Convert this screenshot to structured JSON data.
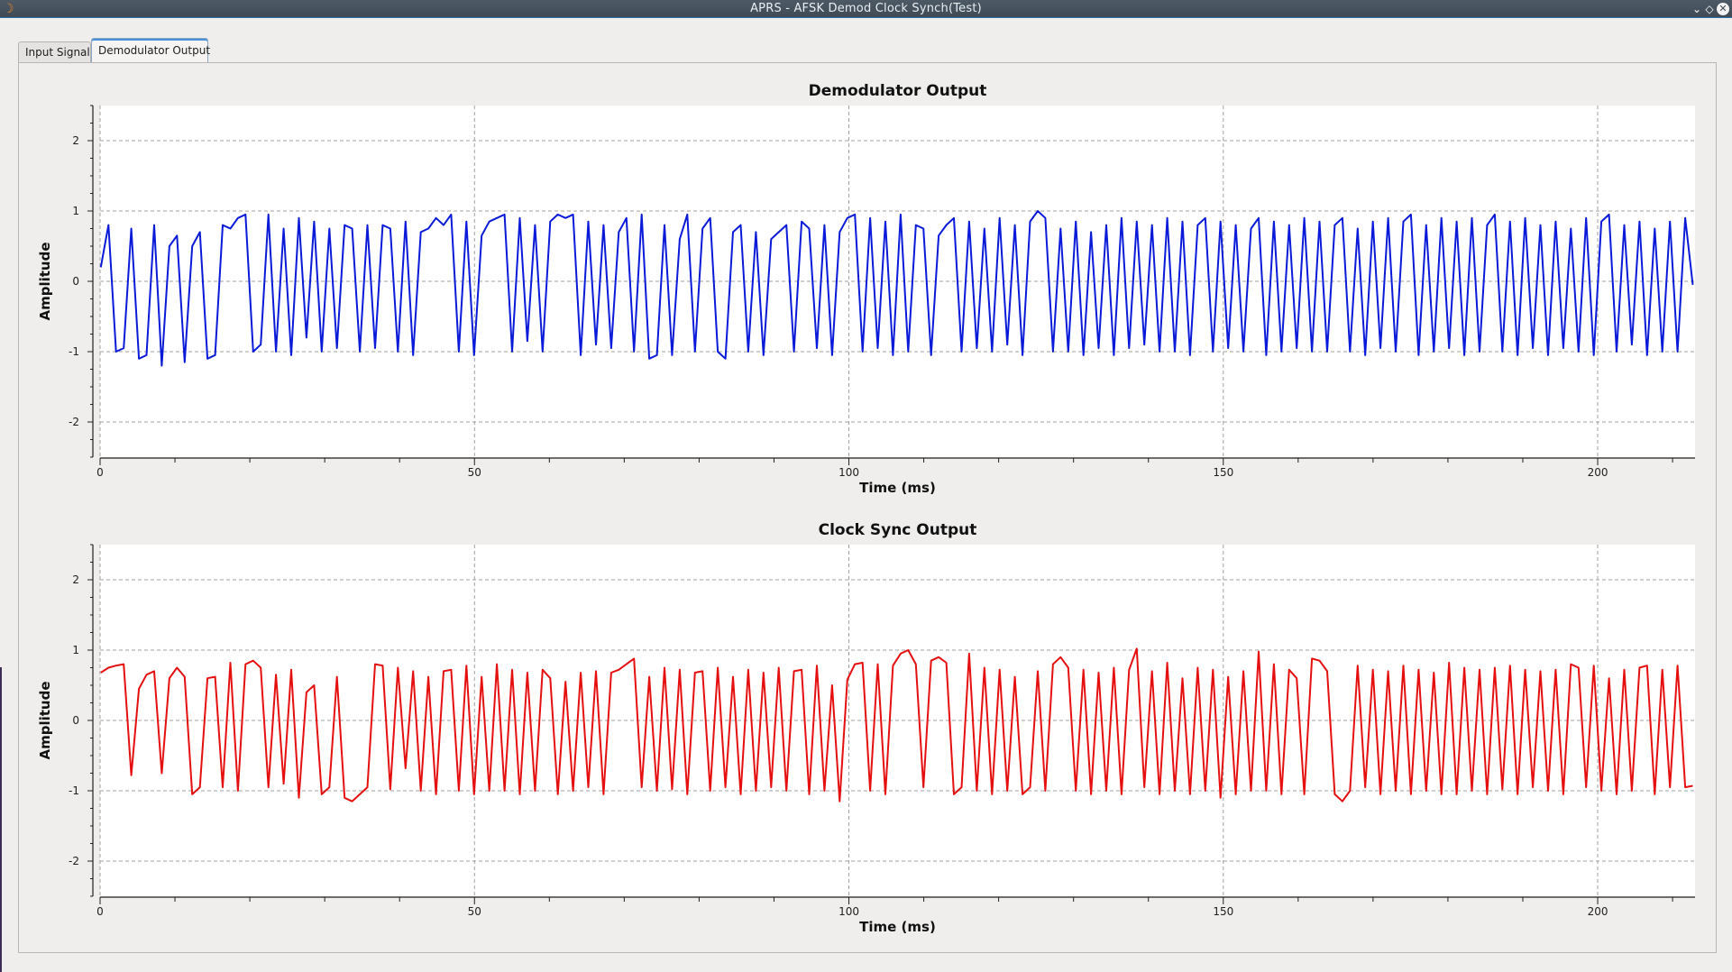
{
  "window": {
    "title": "APRS - AFSK Demod Clock Synch(Test)",
    "app_icon": "gnuradio-icon",
    "buttons": [
      "minimize-icon",
      "maximize-icon",
      "close-icon"
    ]
  },
  "tabs": [
    {
      "label": "Input Signal",
      "active": false
    },
    {
      "label": "Demodulator Output",
      "active": true
    }
  ],
  "chart_data": [
    {
      "type": "line",
      "title": "Demodulator Output",
      "xlabel": "Time (ms)",
      "ylabel": "Amplitude",
      "xlim": [
        0,
        213
      ],
      "ylim": [
        -2.5,
        2.5
      ],
      "xticks": [
        "0",
        "50",
        "100",
        "150",
        "200"
      ],
      "yticks": [
        "2",
        "1",
        "0",
        "-1",
        "-2"
      ],
      "grid": true,
      "color": "#0a1ad9",
      "series": [
        {
          "values": [
            0.2,
            0.8,
            -1.0,
            -0.95,
            0.75,
            -1.1,
            -1.05,
            0.8,
            -1.2,
            0.5,
            0.65,
            -1.15,
            0.5,
            0.7,
            -1.1,
            -1.05,
            0.8,
            0.75,
            0.9,
            0.95,
            -1.0,
            -0.9,
            0.95,
            -1.0,
            0.75,
            -1.05,
            0.9,
            -0.8,
            0.85,
            -1.0,
            0.75,
            -0.95,
            0.8,
            0.75,
            -1.0,
            0.8,
            -0.95,
            0.8,
            0.75,
            -1.0,
            0.85,
            -1.05,
            0.7,
            0.75,
            0.9,
            0.8,
            0.95,
            -1.0,
            0.85,
            -1.05,
            0.65,
            0.85,
            0.9,
            0.95,
            -1.0,
            0.9,
            -0.85,
            0.8,
            -1.0,
            0.85,
            0.95,
            0.9,
            0.95,
            -1.05,
            0.85,
            -0.9,
            0.8,
            -0.95,
            0.7,
            0.9,
            -1.0,
            0.95,
            -1.1,
            -1.05,
            0.8,
            -1.05,
            0.6,
            0.95,
            -1.0,
            0.75,
            0.9,
            -1.0,
            -1.1,
            0.7,
            0.8,
            -1.0,
            0.7,
            -1.05,
            0.6,
            0.7,
            0.8,
            -1.0,
            0.85,
            0.75,
            -0.95,
            0.8,
            -1.05,
            0.7,
            0.9,
            0.95,
            -1.0,
            0.9,
            -0.95,
            0.85,
            -1.05,
            0.95,
            -1.0,
            0.8,
            0.75,
            -1.05,
            0.65,
            0.8,
            0.9,
            -1.0,
            0.85,
            -0.95,
            0.75,
            -1.0,
            0.9,
            -0.9,
            0.8,
            -1.05,
            0.85,
            1.0,
            0.9,
            -1.0,
            0.75,
            -1.0,
            0.85,
            -1.05,
            0.7,
            -0.95,
            0.8,
            -1.05,
            0.9,
            -0.95,
            0.85,
            -0.9,
            0.8,
            -1.0,
            0.9,
            -1.0,
            0.85,
            -1.05,
            0.8,
            0.9,
            -1.0,
            0.85,
            -0.95,
            0.8,
            -1.0,
            0.75,
            0.9,
            -1.05,
            0.85,
            -1.0,
            0.8,
            -0.95,
            0.9,
            -1.0,
            0.85,
            -1.0,
            0.8,
            0.9,
            -1.0,
            0.75,
            -1.05,
            0.85,
            -0.95,
            0.9,
            -1.0,
            0.85,
            0.95,
            -1.05,
            0.8,
            -1.0,
            0.9,
            -0.95,
            0.85,
            -1.05,
            0.9,
            -1.0,
            0.8,
            0.95,
            -1.0,
            0.85,
            -1.05,
            0.9,
            -0.95,
            0.8,
            -1.05,
            0.85,
            -0.95,
            0.75,
            -1.0,
            0.9,
            -1.05,
            0.85,
            0.95,
            -1.0,
            0.8,
            -0.9,
            0.85,
            -1.05,
            0.75,
            -1.0,
            0.85,
            -1.0,
            0.9,
            -0.05
          ]
        }
      ]
    },
    {
      "type": "line",
      "title": "Clock Sync Output",
      "xlabel": "Time (ms)",
      "ylabel": "Amplitude",
      "xlim": [
        0,
        213
      ],
      "ylim": [
        -2.5,
        2.5
      ],
      "xticks": [
        "0",
        "50",
        "100",
        "150",
        "200"
      ],
      "yticks": [
        "2",
        "1",
        "0",
        "-1",
        "-2"
      ],
      "grid": true,
      "color": "#e60f0f",
      "series": [
        {
          "values": [
            0.68,
            0.75,
            0.78,
            0.8,
            -0.78,
            0.45,
            0.65,
            0.7,
            -0.75,
            0.6,
            0.75,
            0.62,
            -1.05,
            -0.95,
            0.6,
            0.62,
            -0.95,
            0.82,
            -1.0,
            0.8,
            0.85,
            0.75,
            -0.95,
            0.65,
            -0.9,
            0.72,
            -1.1,
            0.4,
            0.5,
            -1.05,
            -0.95,
            0.62,
            -1.1,
            -1.15,
            -1.05,
            -0.95,
            0.8,
            0.78,
            -0.98,
            0.75,
            -0.68,
            0.7,
            -1.0,
            0.62,
            -1.05,
            0.7,
            0.72,
            -1.0,
            0.78,
            -1.05,
            0.62,
            -1.0,
            0.8,
            -1.0,
            0.72,
            -1.05,
            0.68,
            -1.0,
            0.72,
            0.6,
            -1.05,
            0.55,
            -1.0,
            0.68,
            -0.95,
            0.7,
            -1.05,
            0.68,
            0.72,
            0.8,
            0.88,
            -0.95,
            0.62,
            -1.0,
            0.75,
            -0.98,
            0.72,
            -1.05,
            0.68,
            0.7,
            -1.0,
            0.75,
            -0.95,
            0.62,
            -1.05,
            0.72,
            -1.0,
            0.68,
            -0.95,
            0.75,
            -1.0,
            0.7,
            0.72,
            -1.05,
            0.78,
            -1.0,
            0.5,
            -1.15,
            0.58,
            0.8,
            0.82,
            -1.0,
            0.8,
            -1.05,
            0.78,
            0.95,
            1.0,
            0.8,
            -0.95,
            0.85,
            0.9,
            0.82,
            -1.05,
            -0.95,
            0.95,
            -1.0,
            0.75,
            -1.05,
            0.72,
            -1.0,
            0.62,
            -1.05,
            -0.95,
            0.7,
            -1.0,
            0.8,
            0.9,
            0.75,
            -1.0,
            0.72,
            -1.05,
            0.68,
            -1.0,
            0.75,
            -1.05,
            0.72,
            1.02,
            -0.95,
            0.7,
            -1.05,
            0.82,
            -1.0,
            0.6,
            -1.05,
            0.75,
            -1.0,
            0.72,
            -1.1,
            0.62,
            -1.05,
            0.7,
            -1.0,
            0.98,
            -1.0,
            0.8,
            -1.05,
            0.72,
            0.6,
            -1.05,
            0.88,
            0.85,
            0.7,
            -1.05,
            -1.15,
            -1.0,
            0.78,
            -0.95,
            0.72,
            -1.05,
            0.7,
            -1.0,
            0.78,
            -1.05,
            0.72,
            -1.0,
            0.68,
            -1.05,
            0.82,
            -1.05,
            0.75,
            -1.0,
            0.72,
            -1.05,
            0.75,
            -0.98,
            0.78,
            -1.05,
            0.72,
            -0.95,
            0.7,
            -1.0,
            0.72,
            -1.05,
            0.8,
            0.75,
            -0.95,
            0.78,
            -1.0,
            0.6,
            -1.05,
            0.72,
            -1.0,
            0.75,
            0.78,
            -1.05,
            0.72,
            -0.95,
            0.78,
            -0.95,
            -0.93
          ]
        }
      ]
    }
  ]
}
